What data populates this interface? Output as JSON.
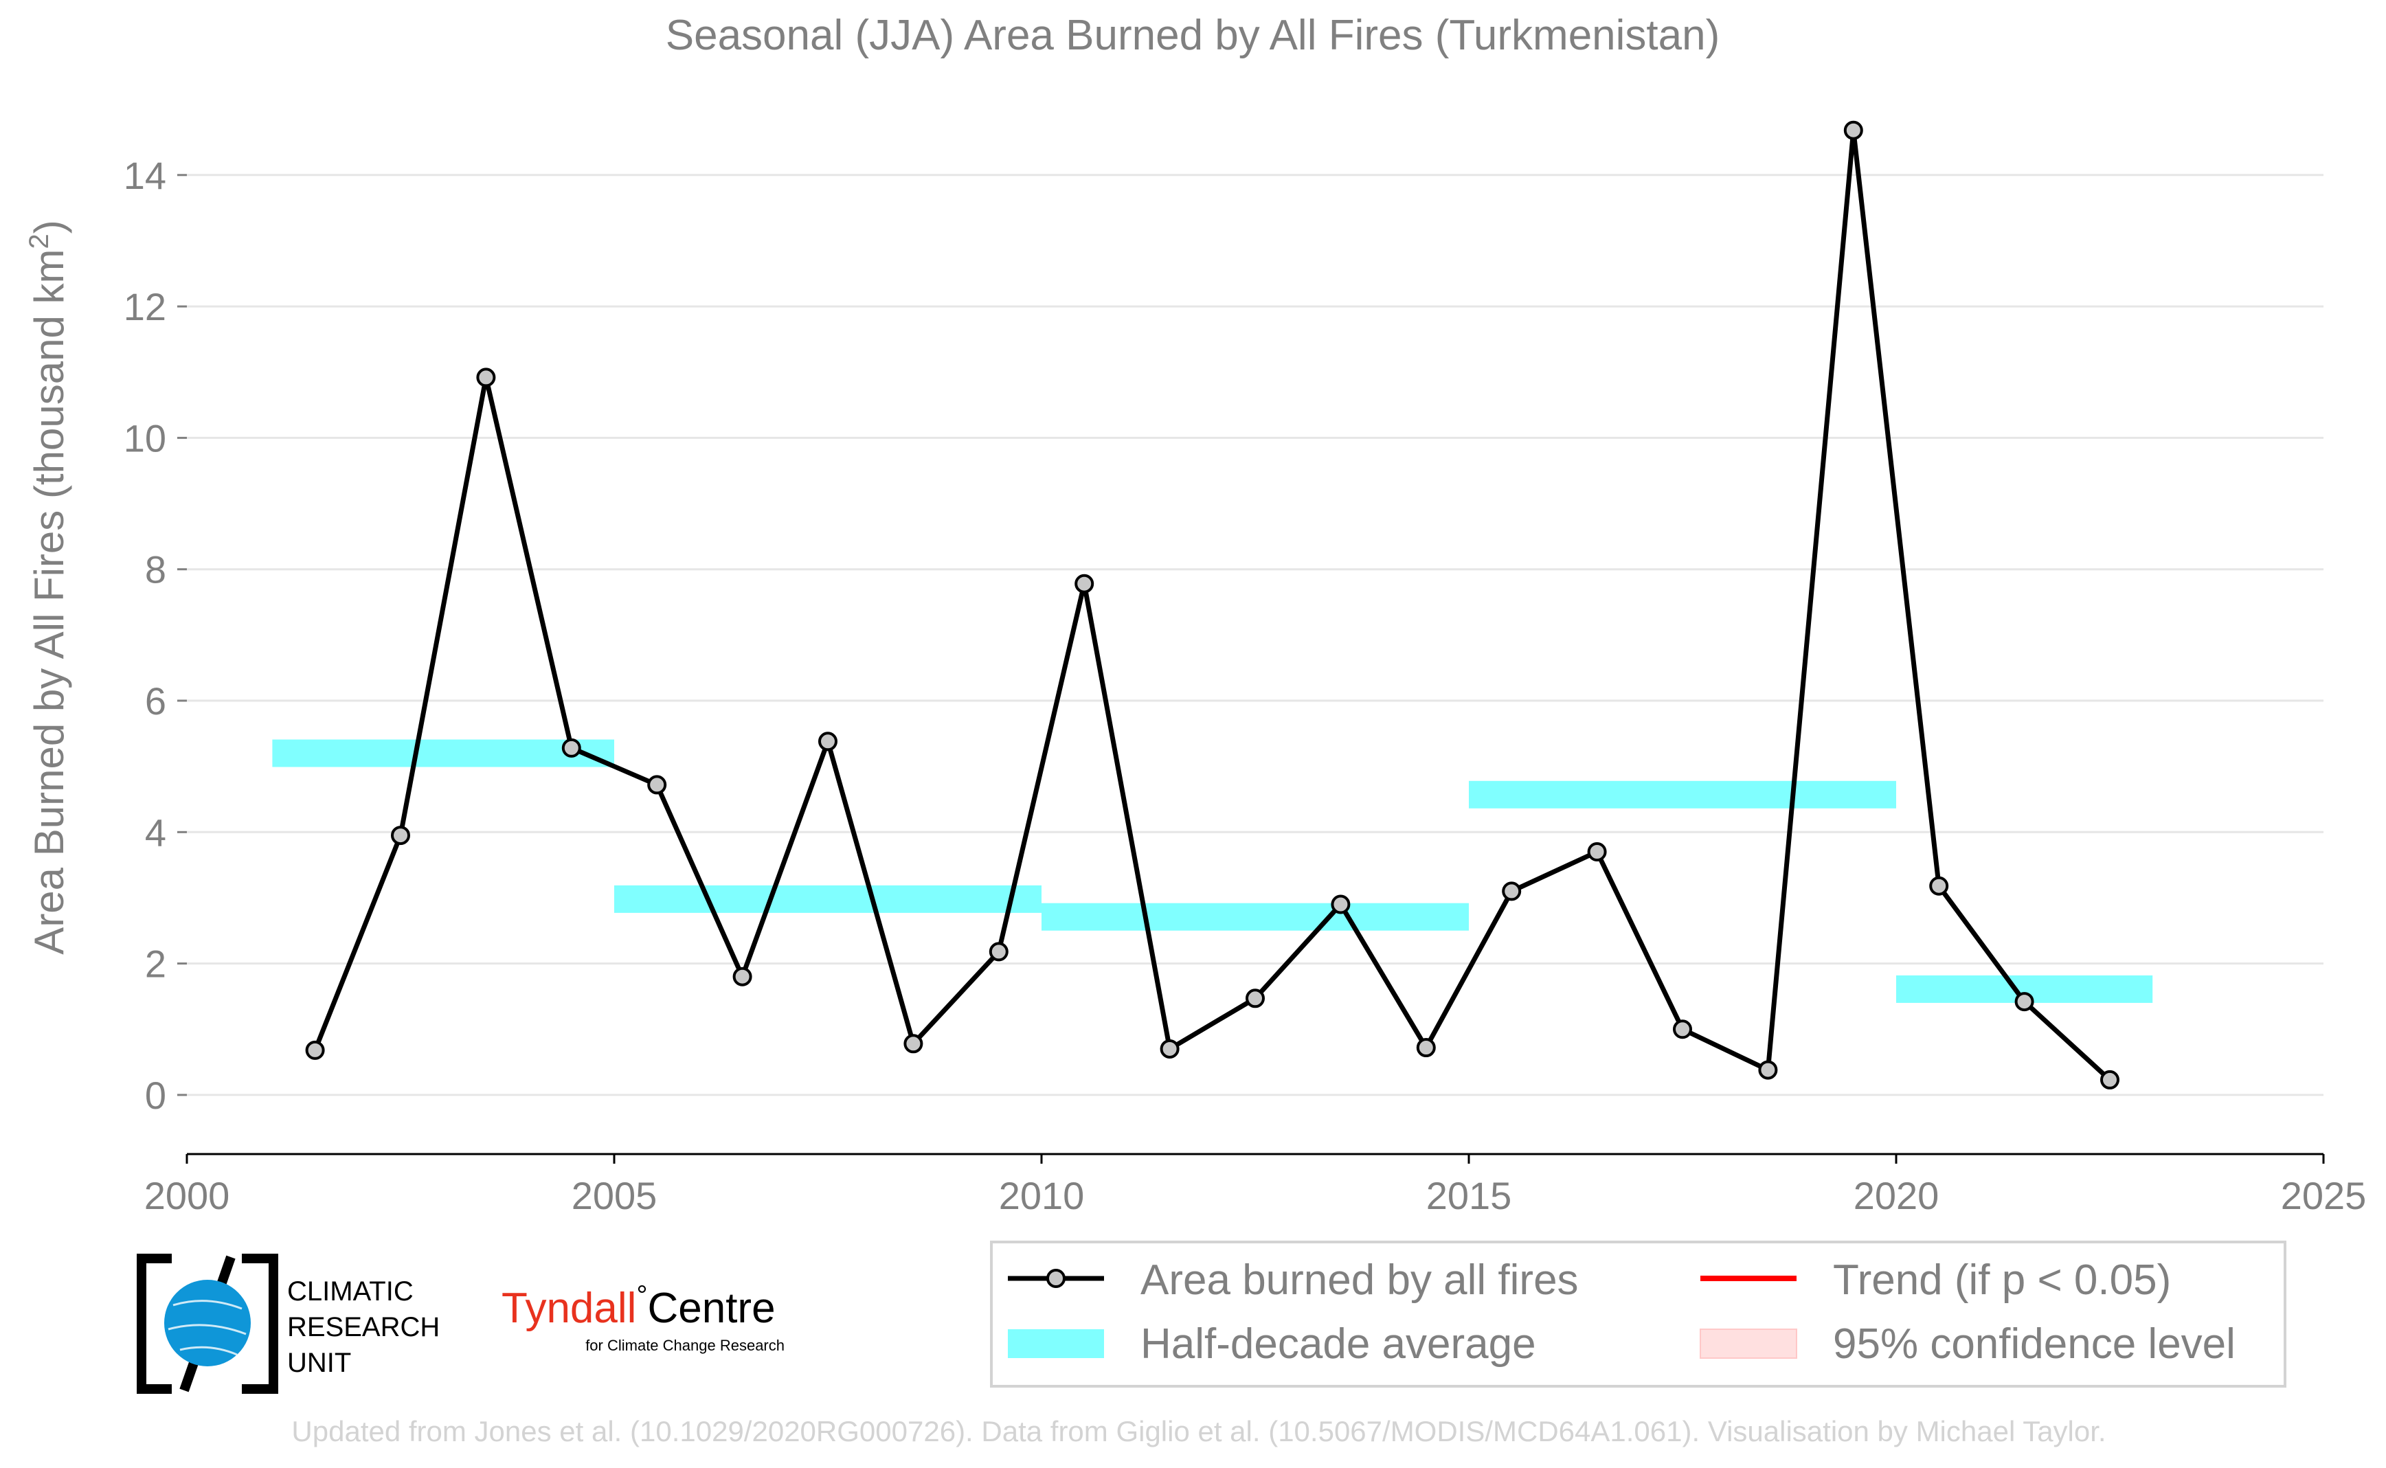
{
  "chart_data": {
    "type": "line",
    "title": "Seasonal (JJA) Area Burned by All Fires (Turkmenistan)",
    "xlabel": "",
    "ylabel_main": "Area Burned by All Fires (thousand km",
    "ylabel_sup": "2",
    "ylabel_close": ")",
    "xlim": [
      2000,
      2025
    ],
    "ylim": [
      -0.9,
      15.2
    ],
    "x_ticks": [
      2000,
      2005,
      2010,
      2015,
      2020,
      2025
    ],
    "x_tick_labels": [
      "2000",
      "2005",
      "2010",
      "2015",
      "2020",
      "2025"
    ],
    "y_ticks": [
      0,
      2,
      4,
      6,
      8,
      10,
      12,
      14
    ],
    "y_tick_labels": [
      "0",
      "2",
      "4",
      "6",
      "8",
      "10",
      "12",
      "14"
    ],
    "grid": "horizontal",
    "legend_position": "bottom-right",
    "series": [
      {
        "name": "Area burned by all fires",
        "color": "#000000",
        "marker_fill": "#c8c8c8",
        "x": [
          2001.5,
          2002.5,
          2003.5,
          2004.5,
          2005.5,
          2006.5,
          2007.5,
          2008.5,
          2009.5,
          2010.5,
          2011.5,
          2012.5,
          2013.5,
          2014.5,
          2015.5,
          2016.5,
          2017.5,
          2018.5,
          2019.5,
          2020.5,
          2021.5,
          2022.5
        ],
        "y": [
          0.68,
          3.95,
          10.92,
          5.28,
          4.72,
          1.8,
          5.38,
          0.78,
          2.18,
          7.78,
          0.7,
          1.47,
          2.9,
          0.72,
          3.1,
          3.7,
          1.0,
          0.38,
          14.68,
          3.18,
          1.42,
          0.23
        ]
      }
    ],
    "half_decade_average": {
      "name": "Half-decade average",
      "color": "#80ffff",
      "segments": [
        {
          "x_start": 2001,
          "x_end": 2005,
          "value": 5.2
        },
        {
          "x_start": 2005,
          "x_end": 2010,
          "value": 2.98
        },
        {
          "x_start": 2010,
          "x_end": 2015,
          "value": 2.71
        },
        {
          "x_start": 2015,
          "x_end": 2020,
          "value": 4.57
        },
        {
          "x_start": 2020,
          "x_end": 2023,
          "value": 1.61
        }
      ]
    },
    "legend": {
      "items": [
        {
          "label": "Area burned by all fires",
          "kind": "line-marker",
          "color": "#000000"
        },
        {
          "label": "Trend (if p < 0.05)",
          "kind": "line",
          "color": "#ff0000"
        },
        {
          "label": "Half-decade average",
          "kind": "band",
          "color": "#80ffff"
        },
        {
          "label": "95% confidence level",
          "kind": "band",
          "color": "#ffe0e0"
        }
      ]
    }
  },
  "logos": {
    "cru_line1": "CLIMATIC",
    "cru_line2": "RESEARCH",
    "cru_line3": "UNIT",
    "tyndall_main": "Tyndall",
    "tyndall_degree": "°",
    "tyndall_centre": "Centre",
    "tyndall_sub": "for Climate Change Research",
    "tyndall_color": "#e8321e",
    "globe_color": "#0f96d8"
  },
  "footer": {
    "credit": "Updated from Jones et al. (10.1029/2020RG000726). Data from Giglio et al. (10.5067/MODIS/MCD64A1.061). Visualisation by Michael Taylor."
  }
}
